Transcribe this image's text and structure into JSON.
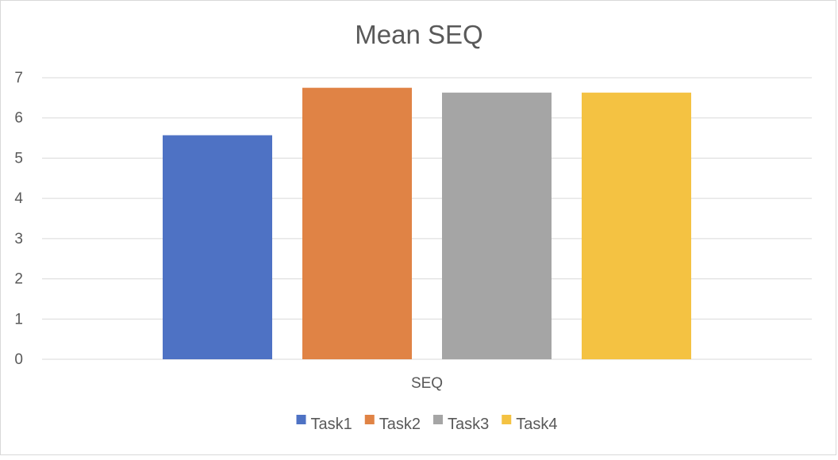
{
  "chart_data": {
    "type": "bar",
    "title": "Mean SEQ",
    "categories": [
      "SEQ"
    ],
    "series": [
      {
        "name": "Task1",
        "values": [
          5.57
        ],
        "color": "#4e72c4"
      },
      {
        "name": "Task2",
        "values": [
          6.75
        ],
        "color": "#e08345"
      },
      {
        "name": "Task3",
        "values": [
          6.63
        ],
        "color": "#a5a5a5"
      },
      {
        "name": "Task4",
        "values": [
          6.63
        ],
        "color": "#f4c242"
      }
    ],
    "ylim": [
      0,
      7
    ],
    "yticks": [
      "0",
      "1",
      "2",
      "3",
      "4",
      "5",
      "6",
      "7"
    ],
    "grid": true,
    "legend_position": "bottom",
    "xlabel": "",
    "ylabel": ""
  }
}
